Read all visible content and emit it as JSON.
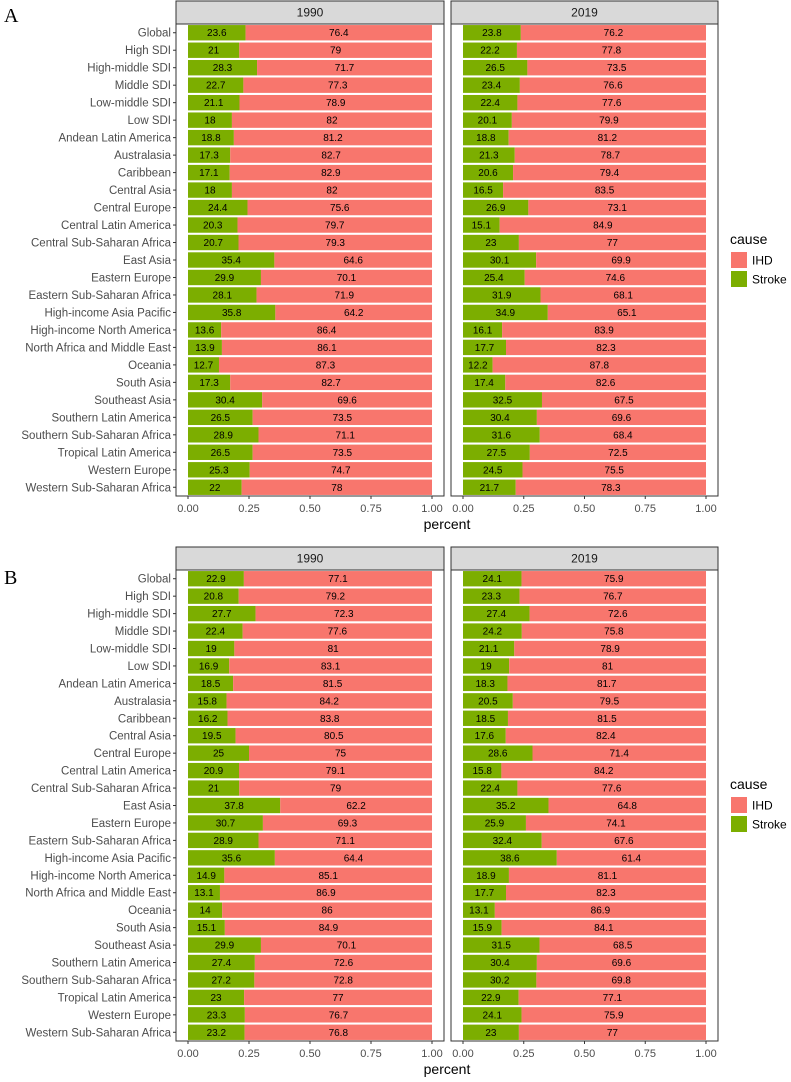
{
  "chart_data": [
    {
      "panel_label": "A",
      "type": "bar",
      "orientation": "horizontal",
      "stacked": true,
      "facets": [
        "1990",
        "2019"
      ],
      "xlabel": "percent",
      "ylabel": "",
      "xlim": [
        0,
        1
      ],
      "xticks": [
        "0.00",
        "0.25",
        "0.50",
        "0.75",
        "1.00"
      ],
      "legend": {
        "title": "cause",
        "position": "right",
        "entries": [
          {
            "name": "IHD",
            "color": "#F8766D"
          },
          {
            "name": "Stroke",
            "color": "#7CAE00"
          }
        ]
      },
      "categories": [
        "Global",
        "High SDI",
        "High-middle SDI",
        "Middle SDI",
        "Low-middle SDI",
        "Low SDI",
        "Andean Latin America",
        "Australasia",
        "Caribbean",
        "Central Asia",
        "Central Europe",
        "Central Latin America",
        "Central Sub-Saharan Africa",
        "East Asia",
        "Eastern Europe",
        "Eastern Sub-Saharan Africa",
        "High-income Asia Pacific",
        "High-income North America",
        "North Africa and Middle East",
        "Oceania",
        "South Asia",
        "Southeast Asia",
        "Southern Latin America",
        "Southern Sub-Saharan Africa",
        "Tropical Latin America",
        "Western Europe",
        "Western Sub-Saharan Africa"
      ],
      "series_by_facet": {
        "1990": {
          "Stroke": [
            "23.6",
            "21",
            "28.3",
            "22.7",
            "21.1",
            "18",
            "18.8",
            "17.3",
            "17.1",
            "18",
            "24.4",
            "20.3",
            "20.7",
            "35.4",
            "29.9",
            "28.1",
            "35.8",
            "13.6",
            "13.9",
            "12.7",
            "17.3",
            "30.4",
            "26.5",
            "28.9",
            "26.5",
            "25.3",
            "22"
          ],
          "IHD": [
            "76.4",
            "79",
            "71.7",
            "77.3",
            "78.9",
            "82",
            "81.2",
            "82.7",
            "82.9",
            "82",
            "75.6",
            "79.7",
            "79.3",
            "64.6",
            "70.1",
            "71.9",
            "64.2",
            "86.4",
            "86.1",
            "87.3",
            "82.7",
            "69.6",
            "73.5",
            "71.1",
            "73.5",
            "74.7",
            "78"
          ]
        },
        "2019": {
          "Stroke": [
            "23.8",
            "22.2",
            "26.5",
            "23.4",
            "22.4",
            "20.1",
            "18.8",
            "21.3",
            "20.6",
            "16.5",
            "26.9",
            "15.1",
            "23",
            "30.1",
            "25.4",
            "31.9",
            "34.9",
            "16.1",
            "17.7",
            "12.2",
            "17.4",
            "32.5",
            "30.4",
            "31.6",
            "27.5",
            "24.5",
            "21.7"
          ],
          "IHD": [
            "76.2",
            "77.8",
            "73.5",
            "76.6",
            "77.6",
            "79.9",
            "81.2",
            "78.7",
            "79.4",
            "83.5",
            "73.1",
            "84.9",
            "77",
            "69.9",
            "74.6",
            "68.1",
            "65.1",
            "83.9",
            "82.3",
            "87.8",
            "82.6",
            "67.5",
            "69.6",
            "68.4",
            "72.5",
            "75.5",
            "78.3"
          ]
        }
      }
    },
    {
      "panel_label": "B",
      "type": "bar",
      "orientation": "horizontal",
      "stacked": true,
      "facets": [
        "1990",
        "2019"
      ],
      "xlabel": "percent",
      "ylabel": "",
      "xlim": [
        0,
        1
      ],
      "xticks": [
        "0.00",
        "0.25",
        "0.50",
        "0.75",
        "1.00"
      ],
      "legend": {
        "title": "cause",
        "position": "right",
        "entries": [
          {
            "name": "IHD",
            "color": "#F8766D"
          },
          {
            "name": "Stroke",
            "color": "#7CAE00"
          }
        ]
      },
      "categories": [
        "Global",
        "High SDI",
        "High-middle SDI",
        "Middle SDI",
        "Low-middle SDI",
        "Low SDI",
        "Andean Latin America",
        "Australasia",
        "Caribbean",
        "Central Asia",
        "Central Europe",
        "Central Latin America",
        "Central Sub-Saharan Africa",
        "East Asia",
        "Eastern Europe",
        "Eastern Sub-Saharan Africa",
        "High-income Asia Pacific",
        "High-income North America",
        "North Africa and Middle East",
        "Oceania",
        "South Asia",
        "Southeast Asia",
        "Southern Latin America",
        "Southern Sub-Saharan Africa",
        "Tropical Latin America",
        "Western Europe",
        "Western Sub-Saharan Africa"
      ],
      "series_by_facet": {
        "1990": {
          "Stroke": [
            "22.9",
            "20.8",
            "27.7",
            "22.4",
            "19",
            "16.9",
            "18.5",
            "15.8",
            "16.2",
            "19.5",
            "25",
            "20.9",
            "21",
            "37.8",
            "30.7",
            "28.9",
            "35.6",
            "14.9",
            "13.1",
            "14",
            "15.1",
            "29.9",
            "27.4",
            "27.2",
            "23",
            "23.3",
            "23.2"
          ],
          "IHD": [
            "77.1",
            "79.2",
            "72.3",
            "77.6",
            "81",
            "83.1",
            "81.5",
            "84.2",
            "83.8",
            "80.5",
            "75",
            "79.1",
            "79",
            "62.2",
            "69.3",
            "71.1",
            "64.4",
            "85.1",
            "86.9",
            "86",
            "84.9",
            "70.1",
            "72.6",
            "72.8",
            "77",
            "76.7",
            "76.8"
          ]
        },
        "2019": {
          "Stroke": [
            "24.1",
            "23.3",
            "27.4",
            "24.2",
            "21.1",
            "19",
            "18.3",
            "20.5",
            "18.5",
            "17.6",
            "28.6",
            "15.8",
            "22.4",
            "35.2",
            "25.9",
            "32.4",
            "38.6",
            "18.9",
            "17.7",
            "13.1",
            "15.9",
            "31.5",
            "30.4",
            "30.2",
            "22.9",
            "24.1",
            "23"
          ],
          "IHD": [
            "75.9",
            "76.7",
            "72.6",
            "75.8",
            "78.9",
            "81",
            "81.7",
            "79.5",
            "81.5",
            "82.4",
            "71.4",
            "84.2",
            "77.6",
            "64.8",
            "74.1",
            "67.6",
            "61.4",
            "81.1",
            "82.3",
            "86.9",
            "84.1",
            "68.5",
            "69.6",
            "69.8",
            "77.1",
            "75.9",
            "77"
          ]
        }
      }
    }
  ]
}
